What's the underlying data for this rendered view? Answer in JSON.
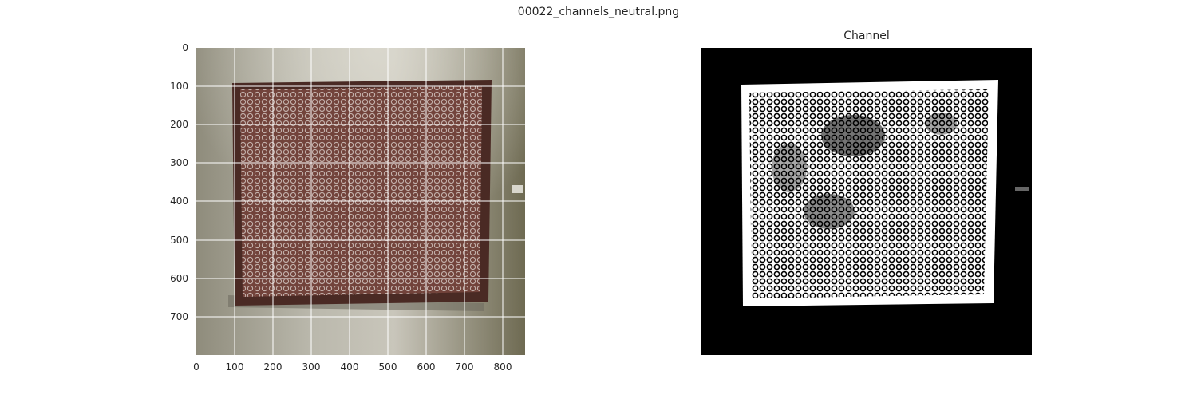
{
  "figure": {
    "title": "00022_channels_neutral.png"
  },
  "left_panel": {
    "image_description_name": "photo-of-framed-textile",
    "x_ticks": [
      "0",
      "100",
      "200",
      "300",
      "400",
      "500",
      "600",
      "700",
      "800"
    ],
    "y_ticks": [
      "0",
      "100",
      "200",
      "300",
      "400",
      "500",
      "600",
      "700"
    ],
    "x_range": [
      0,
      855
    ],
    "y_range": [
      800,
      0
    ],
    "grid": true,
    "colors": {
      "wall": "#8c8a7c",
      "frame": "#4a2a24",
      "textile": "#7a4a42",
      "loops": "#e2d6d2",
      "grid": "#ffffff"
    }
  },
  "right_panel": {
    "title": "Channel",
    "colors": {
      "background": "#000000",
      "foreground": "#ffffff"
    }
  }
}
